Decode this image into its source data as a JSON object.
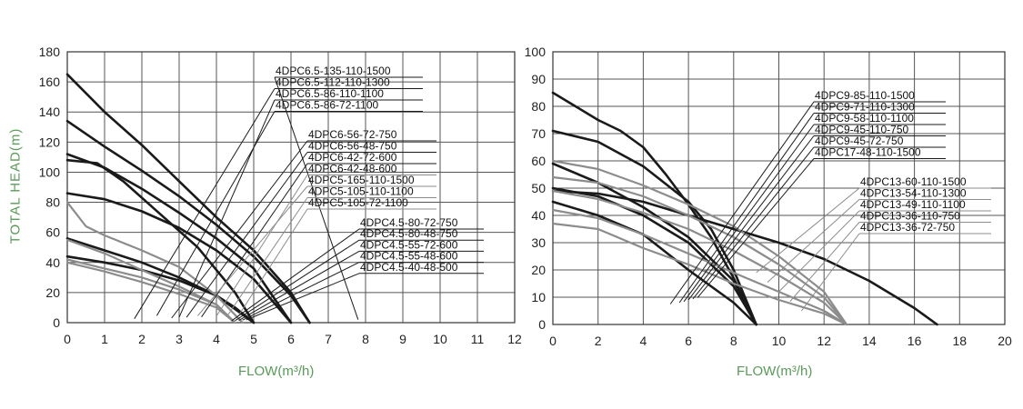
{
  "colors": {
    "title": "#5a9a5a",
    "dark": "#1a1a1a",
    "light": "#8c8c8c",
    "grid": "#555555"
  },
  "y_title": "TOTAL HEAD(m)",
  "chart_data": [
    {
      "type": "line",
      "xlabel": "FLOW(m³/h)",
      "ylabel": "TOTAL HEAD(m)",
      "xlim": [
        0,
        12
      ],
      "ylim": [
        0,
        180
      ],
      "xticks": [
        0,
        1,
        2,
        3,
        4,
        5,
        6,
        7,
        8,
        9,
        10,
        11,
        12
      ],
      "yticks": [
        0,
        20,
        40,
        60,
        80,
        100,
        120,
        140,
        160,
        180
      ],
      "grid": true,
      "series": [
        {
          "name": "4DPC6.5-135-110-1500",
          "color": "dark",
          "x": [
            0,
            1,
            2,
            3,
            4,
            5,
            6,
            6.5
          ],
          "y": [
            165,
            140,
            118,
            94,
            70,
            48,
            20,
            0
          ]
        },
        {
          "name": "4DPC6.5-112-110-1300",
          "color": "dark",
          "x": [
            0,
            1,
            2,
            3,
            4,
            5,
            6,
            6.5
          ],
          "y": [
            134,
            117,
            101,
            84,
            65,
            44,
            18,
            0
          ]
        },
        {
          "name": "4DPC6.5-86-110-1100",
          "color": "dark",
          "x": [
            0,
            1,
            2,
            3,
            4,
            5,
            6
          ],
          "y": [
            112,
            103,
            89,
            73,
            56,
            36,
            0
          ]
        },
        {
          "name": "4DPC6.5-86-72-1100",
          "color": "dark",
          "x": [
            0,
            1,
            2,
            3,
            4,
            5,
            6
          ],
          "y": [
            86,
            82,
            74,
            63,
            48,
            29,
            0
          ]
        },
        {
          "name": "4DPC6-56-72-750",
          "color": "dark",
          "x": [
            0,
            0.8,
            1.5,
            2.5,
            3.5,
            4.5,
            5
          ],
          "y": [
            108,
            106,
            94,
            72,
            50,
            20,
            0
          ]
        },
        {
          "name": "4DPC6-56-48-750",
          "color": "dark",
          "x": [
            0,
            1,
            2,
            3,
            4,
            4.5,
            5
          ],
          "y": [
            56,
            48,
            40,
            30,
            18,
            9,
            0
          ]
        },
        {
          "name": "4DPC6-42-72-600",
          "color": "dark",
          "x": [
            0,
            1,
            2,
            3,
            4,
            4.5,
            5
          ],
          "y": [
            44,
            40,
            35,
            28,
            18,
            10,
            0
          ]
        },
        {
          "name": "4DPC6-42-48-600",
          "color": "light",
          "x": [
            0,
            1,
            2,
            3,
            4,
            4.5
          ],
          "y": [
            55,
            46,
            35,
            24,
            12,
            0
          ]
        },
        {
          "name": "4DPC5-165-110-1500",
          "color": "light",
          "x": [
            0,
            0.5,
            1,
            2,
            3,
            4,
            4.7
          ],
          "y": [
            80,
            64,
            58,
            48,
            37,
            18,
            0
          ]
        },
        {
          "name": "4DPC5-105-110-1100",
          "color": "light",
          "x": [
            0,
            1,
            2,
            3,
            4,
            4.5
          ],
          "y": [
            42,
            36,
            30,
            22,
            12,
            0
          ]
        },
        {
          "name": "4DPC5-105-72-1100",
          "color": "light",
          "x": [
            0,
            1,
            2,
            3,
            4,
            4.5
          ],
          "y": [
            40,
            34,
            27,
            19,
            10,
            0
          ]
        }
      ],
      "legend_a": [
        "4DPC6.5-135-110-1500",
        "4DPC6.5-112-110-1300",
        "4DPC6.5-86-110-1100",
        "4DPC6.5-86-72-1100"
      ],
      "legend_b": [
        "4DPC6-56-72-750",
        "4DPC6-56-48-750",
        "4DPC6-42-72-600",
        "4DPC6-42-48-600",
        "4DPC5-165-110-1500",
        "4DPC5-105-110-1100",
        "4DPC5-105-72-1100"
      ],
      "legend_c": [
        "4DPC4.5-80-72-750",
        "4DPC4.5-80-48-750",
        "4DPC4.5-55-72-600",
        "4DPC4.5-55-48-600",
        "4DPC4.5-40-48-500"
      ]
    },
    {
      "type": "line",
      "xlabel": "FLOW(m³/h)",
      "ylabel": "TOTAL HEAD(m)",
      "xlim": [
        0,
        20
      ],
      "ylim": [
        0,
        100
      ],
      "xticks": [
        0,
        2,
        4,
        6,
        8,
        10,
        12,
        14,
        16,
        18,
        20
      ],
      "yticks": [
        0,
        10,
        20,
        30,
        40,
        50,
        60,
        70,
        80,
        90,
        100
      ],
      "grid": true,
      "series": [
        {
          "name": "4DPC9-85-110-1500",
          "color": "dark",
          "x": [
            0,
            1,
            2,
            3,
            4,
            5,
            6,
            7,
            8,
            9
          ],
          "y": [
            85,
            80,
            75,
            71,
            65,
            55,
            44,
            32,
            17,
            0
          ]
        },
        {
          "name": "4DPC9-71-110-1300",
          "color": "dark",
          "x": [
            0,
            2,
            4,
            6,
            7,
            8,
            9
          ],
          "y": [
            71,
            67,
            58,
            45,
            35,
            20,
            0
          ]
        },
        {
          "name": "4DPC9-58-110-1100",
          "color": "dark",
          "x": [
            0,
            2,
            4,
            6,
            8,
            9
          ],
          "y": [
            59,
            52,
            43,
            32,
            16,
            0
          ]
        },
        {
          "name": "4DPC9-45-110-750",
          "color": "dark",
          "x": [
            0,
            2,
            4,
            6,
            8,
            9
          ],
          "y": [
            45,
            40,
            33,
            20,
            8,
            0
          ]
        },
        {
          "name": "4DPC9-45-72-750",
          "color": "dark",
          "x": [
            0,
            2,
            4,
            6,
            8,
            9
          ],
          "y": [
            50,
            47,
            40,
            30,
            14,
            0
          ]
        },
        {
          "name": "4DPC17-48-110-1500",
          "color": "dark",
          "x": [
            0,
            2,
            4,
            6,
            8,
            10,
            12,
            14,
            16,
            17
          ],
          "y": [
            49,
            48,
            45,
            40,
            35,
            30,
            24,
            16,
            6,
            0
          ]
        },
        {
          "name": "4DPC13-60-110-1500",
          "color": "light",
          "x": [
            0,
            2,
            4,
            6,
            8,
            10,
            12,
            13
          ],
          "y": [
            60,
            57,
            51,
            44,
            36,
            25,
            12,
            0
          ]
        },
        {
          "name": "4DPC13-54-110-1300",
          "color": "light",
          "x": [
            0,
            2,
            4,
            6,
            8,
            10,
            12,
            13
          ],
          "y": [
            54,
            52,
            47,
            40,
            32,
            22,
            10,
            0
          ]
        },
        {
          "name": "4DPC13-49-110-1100",
          "color": "light",
          "x": [
            0,
            2,
            4,
            6,
            8,
            10,
            12,
            13
          ],
          "y": [
            49,
            46,
            41,
            35,
            27,
            18,
            8,
            0
          ]
        },
        {
          "name": "4DPC13-36-110-750",
          "color": "light",
          "x": [
            0,
            2,
            4,
            6,
            8,
            10,
            12,
            13
          ],
          "y": [
            37,
            35,
            28,
            22,
            15,
            9,
            4,
            0
          ]
        },
        {
          "name": "4DPC13-36-72-750",
          "color": "light",
          "x": [
            0,
            2,
            4,
            6,
            8,
            10,
            12,
            13
          ],
          "y": [
            42,
            39,
            33,
            26,
            19,
            12,
            5,
            0
          ]
        }
      ],
      "legend_a": [
        "4DPC9-85-110-1500",
        "4DPC9-71-110-1300",
        "4DPC9-58-110-1100",
        "4DPC9-45-110-750",
        "4DPC9-45-72-750",
        "4DPC17-48-110-1500"
      ],
      "legend_b": [
        "4DPC13-60-110-1500",
        "4DPC13-54-110-1300",
        "4DPC13-49-110-1100",
        "4DPC13-36-110-750",
        "4DPC13-36-72-750"
      ]
    }
  ]
}
